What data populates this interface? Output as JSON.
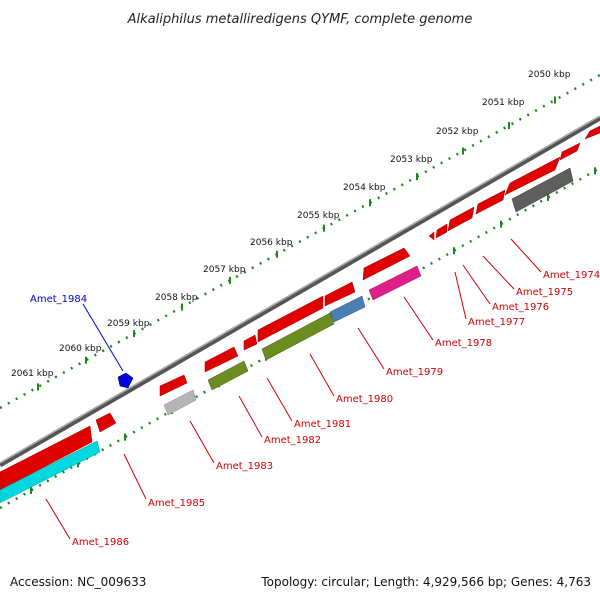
{
  "title": "Alkaliphilus metalliredigens QYMF, complete genome",
  "footer": {
    "accession": "Accession: NC_009633",
    "summary": "Topology: circular; Length: 4,929,566 bp; Genes: 4,763"
  },
  "ticks": [
    "2050 kbp",
    "2051 kbp",
    "2052 kbp",
    "2053 kbp",
    "2054 kbp",
    "2055 kbp",
    "2056 kbp",
    "2057 kbp",
    "2058 kbp",
    "2059 kbp",
    "2060 kbp",
    "2061 kbp"
  ],
  "genes": [
    {
      "name": "Amet_1974",
      "strand": "reverse",
      "color": "#d00000"
    },
    {
      "name": "Amet_1975",
      "strand": "reverse",
      "color": "#d00000"
    },
    {
      "name": "Amet_1976",
      "strand": "reverse",
      "color": "#d00000"
    },
    {
      "name": "Amet_1977",
      "strand": "reverse",
      "color": "#d00000"
    },
    {
      "name": "Amet_1978",
      "strand": "reverse",
      "color": "#d00000"
    },
    {
      "name": "Amet_1979",
      "strand": "reverse",
      "color": "#d00000"
    },
    {
      "name": "Amet_1980",
      "strand": "reverse",
      "color": "#d00000"
    },
    {
      "name": "Amet_1981",
      "strand": "reverse",
      "color": "#d00000"
    },
    {
      "name": "Amet_1982",
      "strand": "reverse",
      "color": "#d00000"
    },
    {
      "name": "Amet_1983",
      "strand": "reverse",
      "color": "#d00000"
    },
    {
      "name": "Amet_1984",
      "strand": "forward",
      "color": "#0000cc"
    },
    {
      "name": "Amet_1985",
      "strand": "reverse",
      "color": "#d00000"
    },
    {
      "name": "Amet_1986",
      "strand": "reverse",
      "color": "#d00000"
    }
  ],
  "cog_colors": {
    "gray": "#666666",
    "magenta": "#e0208a",
    "steelblue": "#4a7fb5",
    "olive": "#6b8c1e",
    "lightgray": "#b5b5b5",
    "cyan": "#00d8e0"
  }
}
